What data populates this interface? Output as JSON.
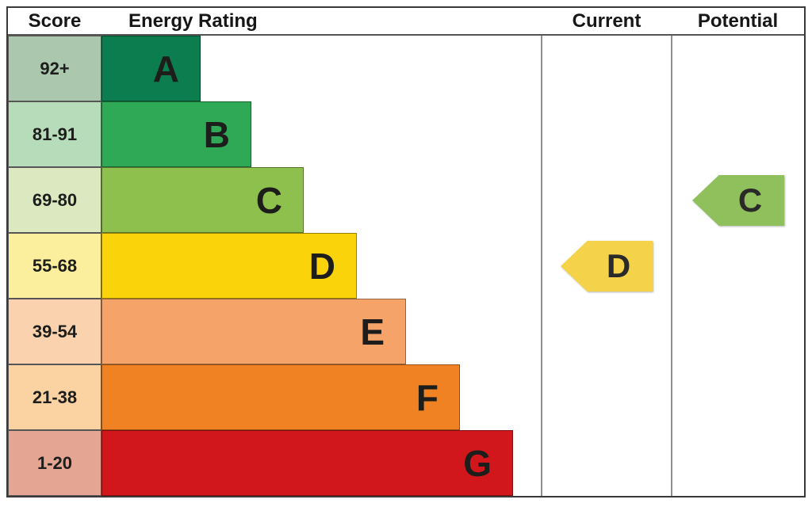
{
  "header": {
    "score": "Score",
    "rating": "Energy Rating",
    "current": "Current",
    "potential": "Potential"
  },
  "chart_data": {
    "type": "bar",
    "subtype": "epc-energy-rating",
    "orientation": "horizontal",
    "title": "Energy Rating",
    "columns": [
      "Score",
      "Energy Rating",
      "Current",
      "Potential"
    ],
    "letter_color": "#1d1d1b",
    "bands": [
      {
        "score_range": "92+",
        "letter": "A",
        "bar_color": "#0B7D4E",
        "score_tint": "#ABC7AD",
        "bar_fraction": 0.225
      },
      {
        "score_range": "81-91",
        "letter": "B",
        "bar_color": "#2FA956",
        "score_tint": "#B7DCB9",
        "bar_fraction": 0.341
      },
      {
        "score_range": "69-80",
        "letter": "C",
        "bar_color": "#8EC04E",
        "score_tint": "#DCE8C0",
        "bar_fraction": 0.46
      },
      {
        "score_range": "55-68",
        "letter": "D",
        "bar_color": "#FBD30B",
        "score_tint": "#FBEE9C",
        "bar_fraction": 0.58
      },
      {
        "score_range": "39-54",
        "letter": "E",
        "bar_color": "#F5A368",
        "score_tint": "#FAD2AD",
        "bar_fraction": 0.692
      },
      {
        "score_range": "21-38",
        "letter": "F",
        "bar_color": "#F08223",
        "score_tint": "#FBD2A2",
        "bar_fraction": 0.814
      },
      {
        "score_range": "1-20",
        "letter": "G",
        "bar_color": "#D2171C",
        "score_tint": "#E5A593",
        "bar_fraction": 0.935
      }
    ],
    "markers": {
      "current": {
        "label": "Current",
        "letter": "D",
        "score_range": "55-68",
        "band_index": 3,
        "color": "#F4D24A"
      },
      "potential": {
        "label": "Potential",
        "letter": "C",
        "score_range": "69-80",
        "band_index": 2,
        "color": "#8FC05C"
      }
    }
  }
}
